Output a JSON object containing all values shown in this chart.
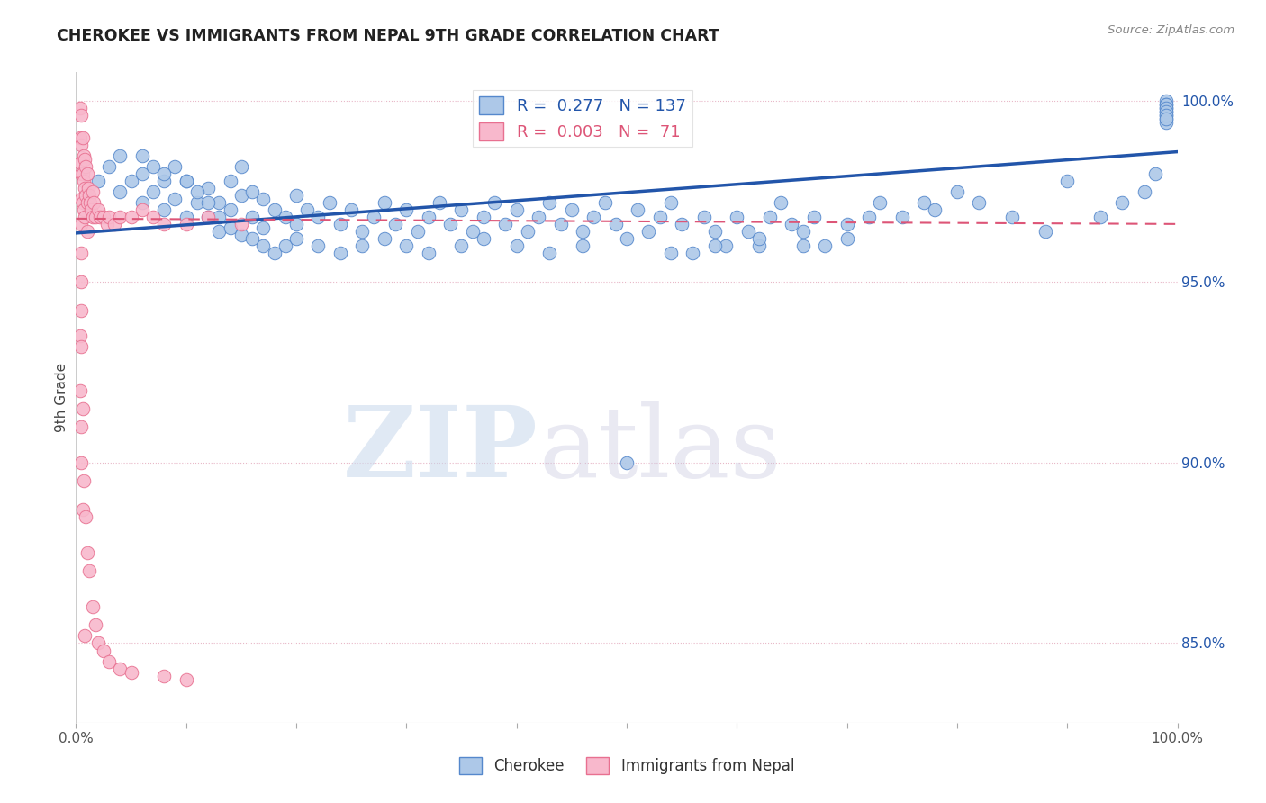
{
  "title": "CHEROKEE VS IMMIGRANTS FROM NEPAL 9TH GRADE CORRELATION CHART",
  "source": "Source: ZipAtlas.com",
  "ylabel": "9th Grade",
  "xlim": [
    0.0,
    1.0
  ],
  "ylim": [
    0.828,
    1.008
  ],
  "blue_R": 0.277,
  "blue_N": 137,
  "pink_R": 0.003,
  "pink_N": 71,
  "blue_color": "#adc8e8",
  "blue_edge_color": "#5588cc",
  "blue_line_color": "#2255aa",
  "pink_color": "#f8b8cc",
  "pink_edge_color": "#e87090",
  "pink_line_color": "#dd5577",
  "ytick_labels": [
    "85.0%",
    "90.0%",
    "95.0%",
    "100.0%"
  ],
  "ytick_values": [
    0.85,
    0.9,
    0.95,
    1.0
  ],
  "blue_scatter_x": [
    0.02,
    0.03,
    0.04,
    0.04,
    0.05,
    0.06,
    0.06,
    0.07,
    0.08,
    0.08,
    0.09,
    0.09,
    0.1,
    0.1,
    0.11,
    0.12,
    0.12,
    0.13,
    0.13,
    0.14,
    0.14,
    0.15,
    0.15,
    0.16,
    0.16,
    0.17,
    0.17,
    0.18,
    0.19,
    0.2,
    0.2,
    0.21,
    0.22,
    0.23,
    0.24,
    0.25,
    0.26,
    0.27,
    0.28,
    0.29,
    0.3,
    0.31,
    0.32,
    0.33,
    0.34,
    0.35,
    0.36,
    0.37,
    0.38,
    0.39,
    0.4,
    0.41,
    0.42,
    0.43,
    0.44,
    0.45,
    0.46,
    0.47,
    0.48,
    0.49,
    0.5,
    0.51,
    0.52,
    0.53,
    0.54,
    0.55,
    0.56,
    0.57,
    0.58,
    0.59,
    0.6,
    0.61,
    0.62,
    0.63,
    0.64,
    0.65,
    0.66,
    0.67,
    0.68,
    0.7,
    0.72,
    0.73,
    0.75,
    0.77,
    0.78,
    0.8,
    0.82,
    0.85,
    0.88,
    0.9,
    0.93,
    0.95,
    0.97,
    0.98,
    0.99,
    0.99,
    0.99,
    0.99,
    0.99,
    0.99,
    0.99,
    0.99,
    0.99,
    0.99,
    0.99,
    0.99,
    0.06,
    0.07,
    0.08,
    0.1,
    0.11,
    0.12,
    0.13,
    0.14,
    0.15,
    0.16,
    0.17,
    0.18,
    0.19,
    0.2,
    0.22,
    0.24,
    0.26,
    0.28,
    0.3,
    0.32,
    0.35,
    0.37,
    0.4,
    0.43,
    0.46,
    0.5,
    0.54,
    0.58,
    0.62,
    0.66,
    0.7
  ],
  "blue_scatter_y": [
    0.978,
    0.982,
    0.975,
    0.985,
    0.978,
    0.98,
    0.972,
    0.975,
    0.978,
    0.97,
    0.982,
    0.973,
    0.978,
    0.968,
    0.972,
    0.976,
    0.968,
    0.972,
    0.964,
    0.97,
    0.978,
    0.974,
    0.982,
    0.975,
    0.968,
    0.973,
    0.965,
    0.97,
    0.968,
    0.974,
    0.966,
    0.97,
    0.968,
    0.972,
    0.966,
    0.97,
    0.964,
    0.968,
    0.972,
    0.966,
    0.97,
    0.964,
    0.968,
    0.972,
    0.966,
    0.97,
    0.964,
    0.968,
    0.972,
    0.966,
    0.97,
    0.964,
    0.968,
    0.972,
    0.966,
    0.97,
    0.964,
    0.968,
    0.972,
    0.966,
    0.9,
    0.97,
    0.964,
    0.968,
    0.972,
    0.966,
    0.958,
    0.968,
    0.964,
    0.96,
    0.968,
    0.964,
    0.96,
    0.968,
    0.972,
    0.966,
    0.964,
    0.968,
    0.96,
    0.966,
    0.968,
    0.972,
    0.968,
    0.972,
    0.97,
    0.975,
    0.972,
    0.968,
    0.964,
    0.978,
    0.968,
    0.972,
    0.975,
    0.98,
    1.0,
    0.999,
    0.998,
    0.997,
    0.996,
    0.995,
    0.994,
    0.999,
    0.998,
    0.997,
    0.996,
    0.995,
    0.985,
    0.982,
    0.98,
    0.978,
    0.975,
    0.972,
    0.968,
    0.965,
    0.963,
    0.962,
    0.96,
    0.958,
    0.96,
    0.962,
    0.96,
    0.958,
    0.96,
    0.962,
    0.96,
    0.958,
    0.96,
    0.962,
    0.96,
    0.958,
    0.96,
    0.962,
    0.958,
    0.96,
    0.962,
    0.96,
    0.962
  ],
  "pink_scatter_x": [
    0.004,
    0.004,
    0.004,
    0.005,
    0.005,
    0.005,
    0.005,
    0.005,
    0.005,
    0.005,
    0.005,
    0.006,
    0.006,
    0.006,
    0.007,
    0.007,
    0.007,
    0.008,
    0.008,
    0.008,
    0.009,
    0.009,
    0.01,
    0.01,
    0.01,
    0.011,
    0.012,
    0.013,
    0.014,
    0.015,
    0.015,
    0.016,
    0.018,
    0.02,
    0.022,
    0.025,
    0.028,
    0.03,
    0.035,
    0.04,
    0.05,
    0.06,
    0.07,
    0.08,
    0.1,
    0.12,
    0.15,
    0.004,
    0.004,
    0.005,
    0.005,
    0.005,
    0.006,
    0.006,
    0.007,
    0.008,
    0.009,
    0.01,
    0.012,
    0.015,
    0.018,
    0.02,
    0.025,
    0.03,
    0.04,
    0.05,
    0.08,
    0.1
  ],
  "pink_scatter_y": [
    0.998,
    0.99,
    0.983,
    0.996,
    0.988,
    0.98,
    0.973,
    0.966,
    0.958,
    0.95,
    0.942,
    0.99,
    0.98,
    0.972,
    0.985,
    0.978,
    0.97,
    0.984,
    0.976,
    0.968,
    0.982,
    0.974,
    0.98,
    0.972,
    0.964,
    0.976,
    0.974,
    0.972,
    0.97,
    0.975,
    0.968,
    0.972,
    0.968,
    0.97,
    0.968,
    0.968,
    0.966,
    0.968,
    0.966,
    0.968,
    0.968,
    0.97,
    0.968,
    0.966,
    0.966,
    0.968,
    0.966,
    0.935,
    0.92,
    0.932,
    0.91,
    0.9,
    0.915,
    0.887,
    0.895,
    0.852,
    0.885,
    0.875,
    0.87,
    0.86,
    0.855,
    0.85,
    0.848,
    0.845,
    0.843,
    0.842,
    0.841,
    0.84
  ]
}
